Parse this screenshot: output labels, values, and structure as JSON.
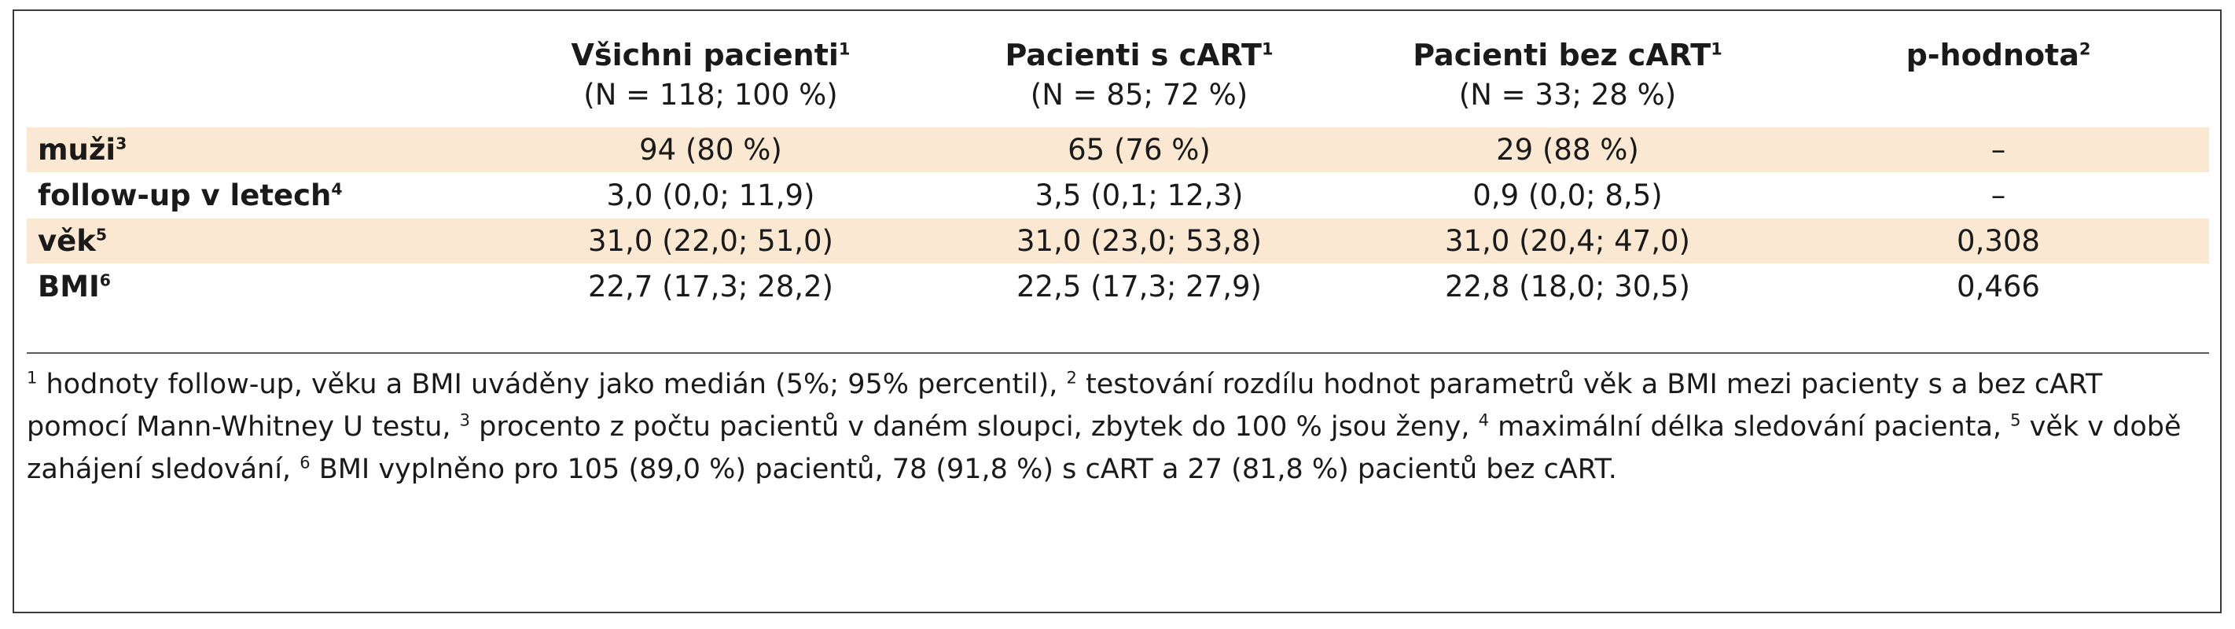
{
  "table": {
    "header": [
      {
        "label": "",
        "sup": "",
        "sub": ""
      },
      {
        "label": "Všichni pacienti",
        "sup": "1",
        "sub": "(N = 118; 100 %)"
      },
      {
        "label": "Pacienti s cART",
        "sup": "1",
        "sub": "(N = 85; 72 %)"
      },
      {
        "label": "Pacienti bez cART",
        "sup": "1",
        "sub": "(N = 33; 28 %)"
      },
      {
        "label": "p-hodnota",
        "sup": "2",
        "sub": ""
      }
    ],
    "rows": [
      {
        "label": "muži",
        "sup": "3",
        "shaded": true,
        "cells": [
          "94 (80 %)",
          "65 (76 %)",
          "29 (88 %)",
          "–"
        ]
      },
      {
        "label": "follow-up v letech",
        "sup": "4",
        "shaded": false,
        "cells": [
          "3,0 (0,0; 11,9)",
          "3,5 (0,1; 12,3)",
          "0,9 (0,0; 8,5)",
          "–"
        ]
      },
      {
        "label": "věk",
        "sup": "5",
        "shaded": true,
        "cells": [
          "31,0 (22,0; 51,0)",
          "31,0 (23,0; 53,8)",
          "31,0 (20,4; 47,0)",
          "0,308"
        ]
      },
      {
        "label": "BMI",
        "sup": "6",
        "shaded": false,
        "cells": [
          "22,7 (17,3; 28,2)",
          "22,5 (17,3; 27,9)",
          "22,8 (18,0; 30,5)",
          "0,466"
        ]
      }
    ]
  },
  "footnotes": [
    {
      "sup": "1",
      "text": " hodnoty follow-up, věku a BMI uváděny jako medián (5%; 95% percentil), "
    },
    {
      "sup": "2",
      "text": " testování rozdílu hodnot parametrů věk a BMI mezi pacienty s a bez cART pomocí Mann-Whitney U testu, "
    },
    {
      "sup": "3",
      "text": " procento z počtu pacientů v daném sloupci, zbytek do 100 % jsou ženy, "
    },
    {
      "sup": "4",
      "text": " maximální délka sledování pacienta, "
    },
    {
      "sup": "5",
      "text": " věk v době zahájení sledování, "
    },
    {
      "sup": "6",
      "text": " BMI vyplněno pro 105 (89,0 %) pacientů, 78 (91,8 %) s cART a 27 (81,8 %) pacientů bez cART."
    }
  ],
  "colors": {
    "row_shade": "#fbe8d2",
    "border": "#3a3a3a"
  }
}
